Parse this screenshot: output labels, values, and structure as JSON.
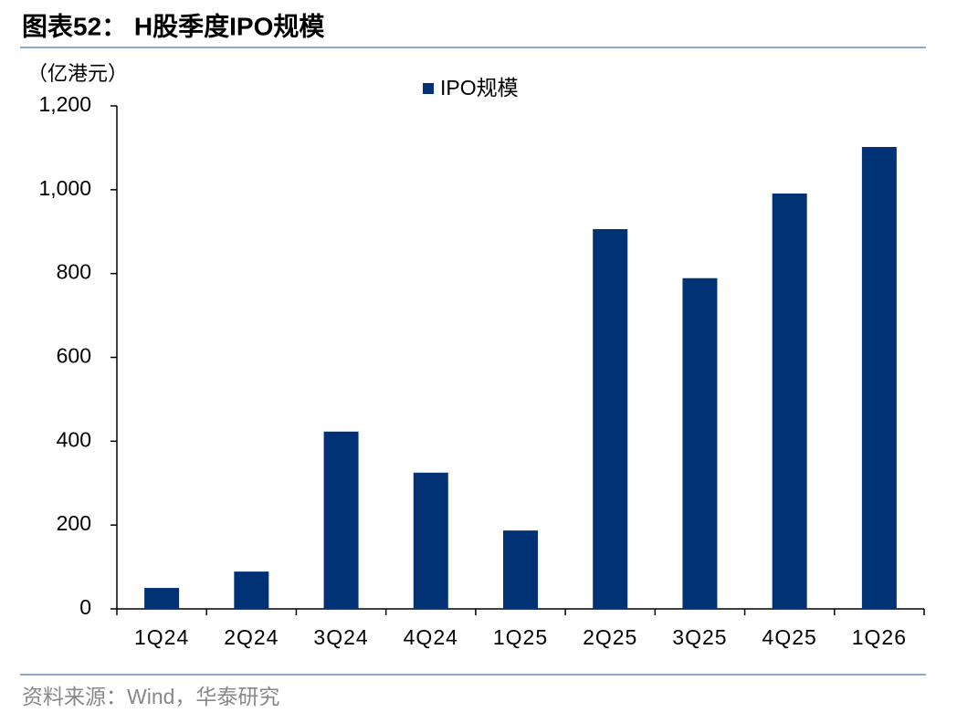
{
  "chart_data": {
    "type": "bar",
    "title": "图表52： H股季度IPO规模",
    "y_label": "（亿港元）",
    "categories": [
      "1Q24",
      "2Q24",
      "3Q24",
      "4Q24",
      "1Q25",
      "2Q25",
      "3Q25",
      "4Q25",
      "1Q26"
    ],
    "series": [
      {
        "name": "IPO规模",
        "color": "#013276",
        "values": [
          50,
          89,
          423,
          325,
          187,
          906,
          789,
          991,
          1102
        ]
      }
    ],
    "ylim": [
      0,
      1200
    ],
    "yticks": [
      0,
      200,
      400,
      600,
      800,
      {
        "value": 1000,
        "label": "1,000"
      },
      {
        "value": 1200,
        "label": "1,200"
      }
    ],
    "legend": "top",
    "source": "资料来源：Wind，华泰研究"
  }
}
